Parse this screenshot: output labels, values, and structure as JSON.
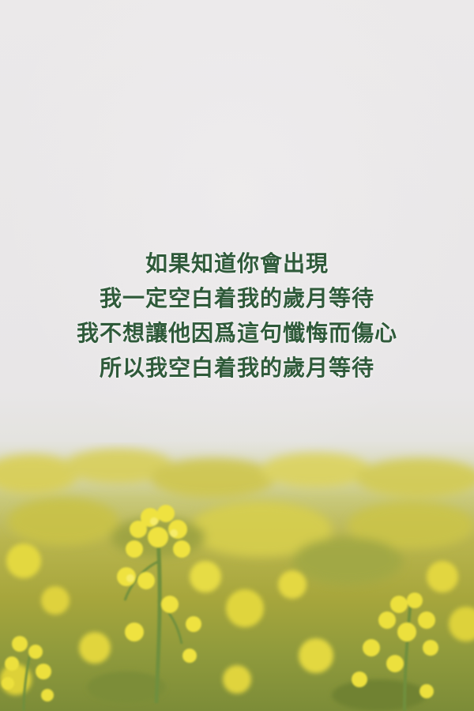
{
  "lyrics": {
    "lines": [
      "如果知道你會出現",
      "我一定空白着我的歲月等待",
      "我不想讓他因爲這句懺悔而傷心",
      "所以我空白着我的歲月等待"
    ]
  },
  "colors": {
    "text": "#2f5a3a",
    "sky": "#e9e7e7",
    "flower": "#e8d93a",
    "stem": "#6f8f3e"
  }
}
